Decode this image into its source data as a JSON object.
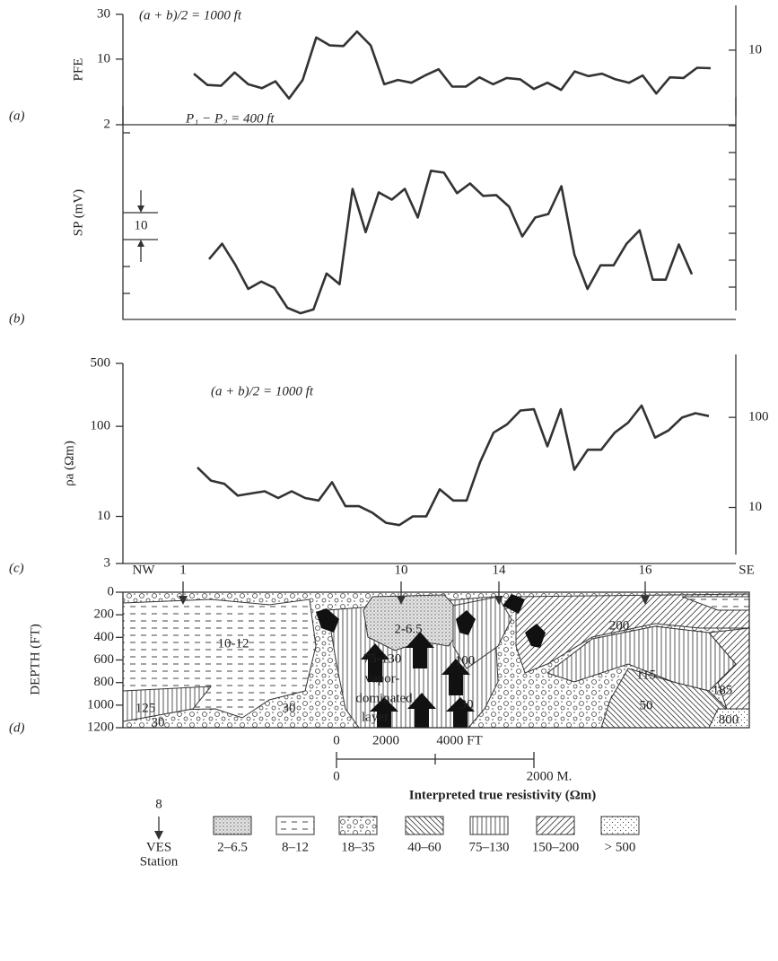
{
  "chart_data": [
    {
      "type": "line",
      "title": "(a + b)/2 = 1000 ft",
      "ylabel": "PFE",
      "log_scale": true,
      "categories": [
        null,
        null,
        null,
        null,
        null,
        null,
        null,
        null,
        null,
        null,
        null,
        null,
        null,
        null,
        null,
        null,
        null,
        null,
        null,
        null,
        null,
        null,
        null,
        null,
        null,
        null,
        null,
        null,
        null,
        null,
        null,
        null,
        null,
        null,
        null,
        null,
        null,
        null,
        null
      ],
      "series": [
        {
          "color": "#333333",
          "values": [
            7.0,
            5.3,
            5.2,
            7.2,
            5.4,
            4.9,
            5.8,
            3.8,
            6.0,
            17.0,
            14.0,
            13.8,
            19.7,
            14.0,
            5.4,
            6.0,
            5.6,
            6.7,
            7.8,
            5.1,
            5.1,
            6.4,
            5.4,
            6.3,
            6.1,
            4.8,
            5.6,
            4.7,
            7.4,
            6.6,
            7.0,
            6.1,
            5.6,
            6.7,
            4.3,
            6.4,
            6.3,
            8.1,
            8.0
          ]
        }
      ],
      "ylim": [
        2,
        30
      ],
      "yticks": [
        2,
        10,
        30
      ],
      "y2lim": [
        2,
        30
      ],
      "y2ticks": [
        10
      ]
    },
    {
      "type": "line",
      "title": "P₁ − P₂ = 400 ft",
      "ylabel": "SP (mV)",
      "scale_bar_label": "10",
      "log_scale": false,
      "categories": [
        null,
        null,
        null,
        null,
        null,
        null,
        null,
        null,
        null,
        null,
        null,
        null,
        null,
        null,
        null,
        null,
        null,
        null,
        null,
        null,
        null,
        null,
        null,
        null,
        null,
        null,
        null,
        null,
        null,
        null,
        null,
        null,
        null,
        null,
        null,
        null,
        null,
        null
      ],
      "series": [
        {
          "color": "#333333",
          "values": [
            22.3,
            28,
            20.3,
            11.3,
            14,
            11.7,
            4.3,
            2.3,
            3.7,
            17,
            13,
            48.3,
            32.3,
            47,
            44.3,
            48.3,
            37.7,
            55,
            54.3,
            46.7,
            50.3,
            45.7,
            46,
            41.7,
            30.7,
            37.7,
            39,
            49.3,
            24,
            11.3,
            20,
            20,
            28,
            33,
            14.7,
            14.7,
            27.7,
            16.7
          ]
        }
      ],
      "ylim": [
        0,
        79
      ]
    },
    {
      "type": "line",
      "title": "(a + b)/2 = 1000 ft",
      "ylabel": "ρa (Ωm)",
      "log_scale": true,
      "categories": [
        null,
        null,
        null,
        null,
        null,
        null,
        null,
        null,
        null,
        null,
        null,
        null,
        null,
        null,
        null,
        null,
        null,
        null,
        null,
        null,
        null,
        null,
        null,
        null,
        null,
        null,
        null,
        null,
        null,
        null,
        null,
        null,
        null,
        null,
        null,
        null,
        null,
        null,
        null
      ],
      "series": [
        {
          "color": "#333333",
          "values": [
            35,
            25,
            23,
            17,
            18,
            19,
            16,
            19,
            16,
            15,
            24,
            13,
            13,
            11,
            8.5,
            8,
            10,
            10,
            20,
            15,
            15,
            40,
            85,
            105,
            150,
            155,
            60,
            155,
            33,
            55,
            55,
            85,
            110,
            170,
            75,
            90,
            125,
            140,
            130
          ]
        }
      ],
      "ylim": [
        3,
        500
      ],
      "yticks": [
        3,
        10,
        100,
        500
      ],
      "y2lim": [
        3,
        500
      ],
      "y2ticks": [
        10,
        100
      ]
    }
  ],
  "panel_labels": [
    "(a)",
    "(b)",
    "(c)",
    "(d)"
  ],
  "cross_section": {
    "ylabel": "DEPTH (FT)",
    "ylim": [
      0,
      1200
    ],
    "yticks": [
      0,
      200,
      400,
      600,
      800,
      1000,
      1200
    ],
    "directions": [
      "NW",
      "SE"
    ],
    "stations": [
      "1",
      "10",
      "14",
      "16"
    ],
    "zone_labels": [
      "2-6.5",
      "10-12",
      "100",
      "200",
      "115",
      "185",
      "75-130",
      "vapor-",
      "dominated",
      "layer",
      "125",
      "30",
      "30",
      "30",
      "50",
      "800"
    ],
    "scale": {
      "feet": [
        "0",
        "2000",
        "4000 FT"
      ],
      "meters": [
        "0",
        "2000 M."
      ]
    }
  },
  "legend": {
    "title": "Interpreted true resistivity (Ωm)",
    "station_number": "8",
    "station_label": [
      "VES",
      "Station"
    ],
    "items": [
      "2–6.5",
      "8–12",
      "18–35",
      "40–60",
      "75–130",
      "150–200",
      "> 500"
    ]
  }
}
